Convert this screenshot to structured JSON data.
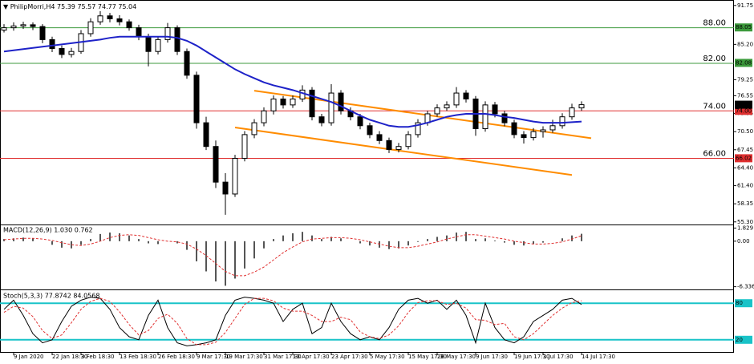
{
  "header": {
    "symbol_info": "PhilipMorri,H4 75.39 75.57 74.77 75.04"
  },
  "chart_data": [
    {
      "type": "candlestick",
      "categories": [
        null,
        "9 Jan 2020",
        null,
        null,
        null,
        "22 Jan 18:30",
        null,
        null,
        "3 Feb 18:30",
        null,
        null,
        null,
        "13 Feb 18:30",
        null,
        null,
        null,
        "26 Feb 18:30",
        null,
        null,
        null,
        "9 Mar 17:30",
        null,
        null,
        "19 Mar 17:30",
        null,
        null,
        null,
        "31 Mar 17:30",
        null,
        null,
        "13 Apr 17:30",
        null,
        null,
        null,
        "23 Apr 17:30",
        null,
        null,
        null,
        "5 May 17:30",
        null,
        null,
        null,
        "15 May 17:30",
        null,
        null,
        "28 May 17:30",
        null,
        null,
        null,
        "9 Jun 17:30",
        null,
        null,
        null,
        "19 Jun 17:30",
        null,
        null,
        "1 Jul 17:30",
        null,
        null,
        null,
        "14 Jul 17:30"
      ],
      "ohlc": [
        [
          87.6,
          88.6,
          87.2,
          88.0
        ],
        [
          88.0,
          88.9,
          87.5,
          88.3
        ],
        [
          88.3,
          89.0,
          87.8,
          88.5
        ],
        [
          88.5,
          88.9,
          87.6,
          88.2
        ],
        [
          88.2,
          88.6,
          85.4,
          86.0
        ],
        [
          86.0,
          86.5,
          83.9,
          84.5
        ],
        [
          84.5,
          85.0,
          82.9,
          83.5
        ],
        [
          83.5,
          84.6,
          83.0,
          84.0
        ],
        [
          84.0,
          87.6,
          83.6,
          87.0
        ],
        [
          87.0,
          89.6,
          86.5,
          89.0
        ],
        [
          89.0,
          90.8,
          88.5,
          90.0
        ],
        [
          90.0,
          90.5,
          88.9,
          89.5
        ],
        [
          89.5,
          90.1,
          88.4,
          89.0
        ],
        [
          89.0,
          89.4,
          87.5,
          88.0
        ],
        [
          88.0,
          88.5,
          85.9,
          86.5
        ],
        [
          86.5,
          87.0,
          81.5,
          84.0
        ],
        [
          84.0,
          86.6,
          83.5,
          86.0
        ],
        [
          86.0,
          88.8,
          85.5,
          88.0
        ],
        [
          88.0,
          88.4,
          83.4,
          84.0
        ],
        [
          84.0,
          84.5,
          79.4,
          80.0
        ],
        [
          80.0,
          80.6,
          71.0,
          72.0
        ],
        [
          72.0,
          73.0,
          67.4,
          68.0
        ],
        [
          68.0,
          69.0,
          61.0,
          62.0
        ],
        [
          62.0,
          63.5,
          56.5,
          60.0
        ],
        [
          60.0,
          66.6,
          59.5,
          66.0
        ],
        [
          66.0,
          70.6,
          65.5,
          70.0
        ],
        [
          70.0,
          72.6,
          69.4,
          72.0
        ],
        [
          72.0,
          74.6,
          71.4,
          74.0
        ],
        [
          74.0,
          76.6,
          73.4,
          76.0
        ],
        [
          76.0,
          76.5,
          74.4,
          75.0
        ],
        [
          75.0,
          76.6,
          74.5,
          76.0
        ],
        [
          76.0,
          78.3,
          75.5,
          77.5
        ],
        [
          77.5,
          78.0,
          72.4,
          73.0
        ],
        [
          73.0,
          73.5,
          71.4,
          72.0
        ],
        [
          72.0,
          78.5,
          71.5,
          77.0
        ],
        [
          77.0,
          77.5,
          73.4,
          74.0
        ],
        [
          74.0,
          74.6,
          72.4,
          73.0
        ],
        [
          73.0,
          73.5,
          70.9,
          71.5
        ],
        [
          71.5,
          72.0,
          69.4,
          70.0
        ],
        [
          70.0,
          70.6,
          68.4,
          69.0
        ],
        [
          69.0,
          69.5,
          66.9,
          67.5
        ],
        [
          67.5,
          68.6,
          67.0,
          68.0
        ],
        [
          68.0,
          70.6,
          67.5,
          70.0
        ],
        [
          70.0,
          72.6,
          69.5,
          72.0
        ],
        [
          72.0,
          74.0,
          71.5,
          73.5
        ],
        [
          73.5,
          75.1,
          73.0,
          74.5
        ],
        [
          74.5,
          75.6,
          74.0,
          75.0
        ],
        [
          75.0,
          78.0,
          74.5,
          77.0
        ],
        [
          77.0,
          77.5,
          75.4,
          76.0
        ],
        [
          76.0,
          76.5,
          69.8,
          71.0
        ],
        [
          71.0,
          75.6,
          70.5,
          75.0
        ],
        [
          75.0,
          75.5,
          72.9,
          73.5
        ],
        [
          73.5,
          74.0,
          71.4,
          72.0
        ],
        [
          72.0,
          72.5,
          69.4,
          70.0
        ],
        [
          70.0,
          70.6,
          68.5,
          69.5
        ],
        [
          69.5,
          71.1,
          69.0,
          70.5
        ],
        [
          70.5,
          71.4,
          69.5,
          70.8
        ],
        [
          70.8,
          72.5,
          70.3,
          71.5
        ],
        [
          71.5,
          73.6,
          71.0,
          73.0
        ],
        [
          73.0,
          75.2,
          72.5,
          74.5
        ],
        [
          74.5,
          75.6,
          74.0,
          75.04
        ]
      ],
      "ma": {
        "color": "#1e22c8",
        "values": [
          84.0,
          84.2,
          84.4,
          84.6,
          84.8,
          85.0,
          85.2,
          85.4,
          85.6,
          85.8,
          86.0,
          86.3,
          86.5,
          86.5,
          86.5,
          86.5,
          86.5,
          86.5,
          86.3,
          85.8,
          85.0,
          84.0,
          83.0,
          82.0,
          81.0,
          80.2,
          79.5,
          78.8,
          78.3,
          77.9,
          77.5,
          77.0,
          76.5,
          76.0,
          75.5,
          74.8,
          74.0,
          73.2,
          72.5,
          72.0,
          71.5,
          71.3,
          71.3,
          71.6,
          72.0,
          72.5,
          73.0,
          73.3,
          73.5,
          73.5,
          73.5,
          73.3,
          73.0,
          72.8,
          72.5,
          72.2,
          72.0,
          72.0,
          72.0,
          72.1,
          72.2
        ]
      },
      "ylim": [
        55.0,
        92.4
      ],
      "yticks": [
        91.75,
        {
          "value": 85.2,
          "label": "85.20"
        },
        79.25,
        76.55,
        73.55,
        {
          "value": 70.5,
          "label": "70.50"
        },
        67.45,
        {
          "value": 64.4,
          "label": "64.40"
        },
        {
          "value": 61.4,
          "label": "61.40"
        },
        58.35,
        {
          "value": 55.3,
          "label": "55.30"
        }
      ],
      "levels": [
        {
          "value": 88,
          "label": "88.00",
          "tag": {
            "value": 88.05,
            "label": "88.05"
          },
          "color": "#3c9a3c"
        },
        {
          "value": 82,
          "label": "82.00",
          "tag": {
            "value": 82.08,
            "label": "82.08"
          },
          "color": "#3c9a3c"
        },
        {
          "value": 74,
          "label": "74.00",
          "tag": {
            "value": 74,
            "label": "74.00"
          },
          "color": "#e03030"
        },
        {
          "value": 66,
          "label": "66.00",
          "tag": {
            "value": 66.02,
            "label": "66.02"
          },
          "color": "#e03030"
        }
      ],
      "last_price": {
        "value": 75.04,
        "label": "75.04"
      },
      "trendlines": [
        {
          "color": "#ff8c00",
          "points": [
            [
              26,
              77.4
            ],
            [
              61,
              69.4
            ]
          ]
        },
        {
          "color": "#ff8c00",
          "points": [
            [
              24,
              71.2
            ],
            [
              59,
              63.2
            ]
          ]
        }
      ]
    },
    {
      "type": "bar",
      "label": "MACD(12,26,9) 1.030 0.762",
      "values": [
        0.3,
        0.4,
        0.5,
        0.4,
        0.0,
        -0.5,
        -0.9,
        -1.0,
        -0.5,
        0.3,
        1.0,
        1.2,
        1.1,
        0.8,
        0.3,
        -0.3,
        -0.4,
        0.0,
        -0.3,
        -1.2,
        -2.8,
        -4.2,
        -5.6,
        -6.2,
        -5.2,
        -3.8,
        -2.4,
        -1.0,
        0.3,
        0.8,
        1.1,
        1.3,
        0.8,
        0.3,
        0.6,
        0.4,
        0.0,
        -0.3,
        -0.6,
        -0.9,
        -1.1,
        -1.0,
        -0.6,
        -0.1,
        0.3,
        0.6,
        0.8,
        1.2,
        1.3,
        0.3,
        0.4,
        0.1,
        -0.2,
        -0.5,
        -0.6,
        -0.4,
        -0.2,
        0.0,
        0.4,
        0.8,
        1.03
      ],
      "color": "#555555",
      "signal": {
        "color": "#e03030",
        "values": [
          0.2,
          0.3,
          0.4,
          0.4,
          0.3,
          0.1,
          -0.2,
          -0.5,
          -0.6,
          -0.4,
          0.0,
          0.5,
          0.8,
          0.9,
          0.8,
          0.5,
          0.2,
          0.0,
          -0.1,
          -0.4,
          -1.1,
          -2.0,
          -3.1,
          -4.2,
          -4.8,
          -4.8,
          -4.3,
          -3.6,
          -2.6,
          -1.6,
          -0.8,
          -0.1,
          0.3,
          0.4,
          0.5,
          0.5,
          0.4,
          0.2,
          -0.1,
          -0.4,
          -0.7,
          -0.9,
          -0.9,
          -0.7,
          -0.4,
          -0.1,
          0.3,
          0.6,
          0.9,
          0.9,
          0.7,
          0.5,
          0.3,
          0.0,
          -0.2,
          -0.4,
          -0.4,
          -0.3,
          -0.1,
          0.3,
          0.762
        ]
      },
      "ylim": [
        -6.6,
        2.1
      ],
      "yticks": [
        1.829,
        {
          "value": 0,
          "label": "0.00"
        },
        -6.336
      ]
    },
    {
      "type": "line",
      "label": "Stoch(5,3,3) 77.8742 84.0568",
      "series": [
        {
          "color": "#000000",
          "dash": false,
          "values": [
            70,
            85,
            60,
            30,
            15,
            20,
            50,
            75,
            85,
            90,
            88,
            70,
            40,
            25,
            20,
            60,
            85,
            40,
            15,
            10,
            12,
            15,
            20,
            60,
            85,
            90,
            88,
            85,
            80,
            50,
            70,
            80,
            30,
            40,
            80,
            50,
            30,
            20,
            25,
            20,
            40,
            70,
            85,
            88,
            80,
            85,
            70,
            85,
            60,
            15,
            80,
            40,
            20,
            15,
            25,
            50,
            60,
            70,
            85,
            88,
            77.87
          ]
        },
        {
          "color": "#e03030",
          "dash": true,
          "values": [
            65,
            75,
            72,
            58,
            35,
            22,
            28,
            48,
            70,
            83,
            88,
            83,
            66,
            45,
            28,
            35,
            55,
            62,
            47,
            22,
            12,
            12,
            16,
            32,
            55,
            78,
            88,
            88,
            84,
            72,
            67,
            67,
            60,
            50,
            50,
            57,
            53,
            33,
            25,
            22,
            28,
            43,
            65,
            81,
            84,
            84,
            78,
            80,
            72,
            53,
            52,
            45,
            47,
            25,
            20,
            30,
            45,
            60,
            72,
            81,
            84.06
          ]
        }
      ],
      "ylim": [
        0,
        100
      ],
      "levels": [
        80,
        20
      ],
      "level_color": "#19c3c8"
    }
  ]
}
